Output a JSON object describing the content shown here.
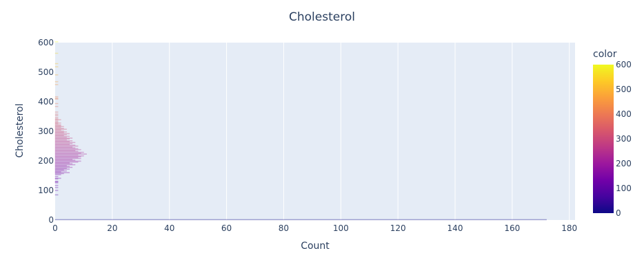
{
  "chart_data": {
    "type": "bar",
    "orientation": "horizontal",
    "title": "Cholesterol",
    "xlabel": "Count",
    "ylabel": "Cholesterol",
    "xlim": [
      0,
      182
    ],
    "ylim": [
      0,
      600
    ],
    "xticks": [
      0,
      20,
      40,
      60,
      80,
      100,
      120,
      140,
      160,
      180
    ],
    "yticks": [
      0,
      100,
      200,
      300,
      400,
      500,
      600
    ],
    "grid": true,
    "colorbar": {
      "title": "color",
      "range": [
        0,
        600
      ],
      "ticks": [
        0,
        100,
        200,
        300,
        400,
        500,
        600
      ],
      "colorscale": [
        "#0d0887",
        "#46039f",
        "#7201a8",
        "#9c179e",
        "#bd3786",
        "#d8576b",
        "#ed7953",
        "#fb9f3a",
        "#fdca26",
        "#f0f921"
      ]
    },
    "bar_opacity": 0.2,
    "y": [
      0,
      85,
      100,
      110,
      117,
      126,
      129,
      131,
      139,
      141,
      147,
      153,
      157,
      160,
      163,
      166,
      169,
      172,
      175,
      178,
      181,
      184,
      187,
      190,
      193,
      196,
      199,
      202,
      205,
      208,
      211,
      214,
      217,
      220,
      223,
      226,
      229,
      232,
      235,
      238,
      241,
      244,
      247,
      250,
      253,
      256,
      259,
      262,
      265,
      268,
      271,
      274,
      277,
      280,
      283,
      286,
      289,
      292,
      295,
      298,
      301,
      304,
      307,
      310,
      313,
      316,
      319,
      322,
      325,
      328,
      331,
      335,
      339,
      342,
      347,
      353,
      358,
      365,
      384,
      394,
      409,
      412,
      417,
      458,
      468,
      491,
      518,
      529,
      564,
      603
    ],
    "values": [
      172,
      1,
      1,
      1,
      1,
      1,
      1,
      1,
      1,
      2,
      1,
      2,
      3,
      5,
      2,
      4,
      3,
      5,
      4,
      6,
      5,
      4,
      7,
      6,
      5,
      8,
      9,
      7,
      6,
      9,
      8,
      9,
      10,
      8,
      11,
      9,
      10,
      8,
      7,
      9,
      8,
      7,
      6,
      8,
      7,
      5,
      6,
      7,
      5,
      6,
      4,
      5,
      6,
      4,
      5,
      3,
      4,
      5,
      3,
      4,
      3,
      2,
      4,
      3,
      2,
      3,
      2,
      2,
      1,
      2,
      1,
      1,
      2,
      1,
      1,
      1,
      1,
      1,
      1,
      1,
      1,
      1,
      1,
      1,
      1,
      1,
      1,
      1,
      1,
      1
    ]
  }
}
